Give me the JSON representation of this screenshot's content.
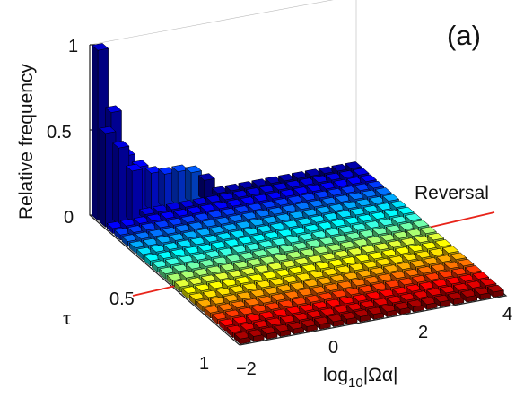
{
  "chart_data": {
    "type": "bar3d",
    "panel_label": "(a)",
    "zlabel": "Relative frequency",
    "xlabel_main": "log",
    "xlabel_sub": "10",
    "xlabel_rest": "|Ωα|",
    "ylabel": "τ",
    "annotation": "Reversal",
    "annotation_color": "#e8241a",
    "x_ticks": [
      "−2",
      "0",
      "2",
      "4"
    ],
    "x_tick_values": [
      -2,
      0,
      2,
      4
    ],
    "y_ticks": [
      "0.5",
      "1"
    ],
    "y_tick_values": [
      0.5,
      1
    ],
    "z_ticks": [
      "0",
      "0.5",
      "1"
    ],
    "z_tick_values": [
      0,
      0.5,
      1
    ],
    "xlim": [
      -2,
      4
    ],
    "ylim": [
      0,
      1
    ],
    "zlim": [
      0,
      1
    ],
    "x_bins": 20,
    "tau_bins": 20,
    "colormap": "jet",
    "baseline_height": 0.03,
    "peaks": [
      {
        "x": -1.8,
        "tau": 0.0,
        "value": 1.0
      },
      {
        "x": -1.8,
        "tau": 0.05,
        "value": 0.55
      },
      {
        "x": -1.5,
        "tau": 0.0,
        "value": 0.62
      },
      {
        "x": -1.5,
        "tau": 0.05,
        "value": 0.45
      },
      {
        "x": -1.2,
        "tau": 0.0,
        "value": 0.35
      },
      {
        "x": -1.2,
        "tau": 0.05,
        "value": 0.3
      },
      {
        "x": -0.9,
        "tau": 0.0,
        "value": 0.27
      },
      {
        "x": -0.6,
        "tau": 0.0,
        "value": 0.22
      },
      {
        "x": -0.3,
        "tau": 0.0,
        "value": 0.2
      },
      {
        "x": 0.0,
        "tau": 0.0,
        "value": 0.2
      },
      {
        "x": 0.3,
        "tau": 0.0,
        "value": 0.18
      },
      {
        "x": 0.6,
        "tau": 0.0,
        "value": 0.12
      }
    ]
  }
}
